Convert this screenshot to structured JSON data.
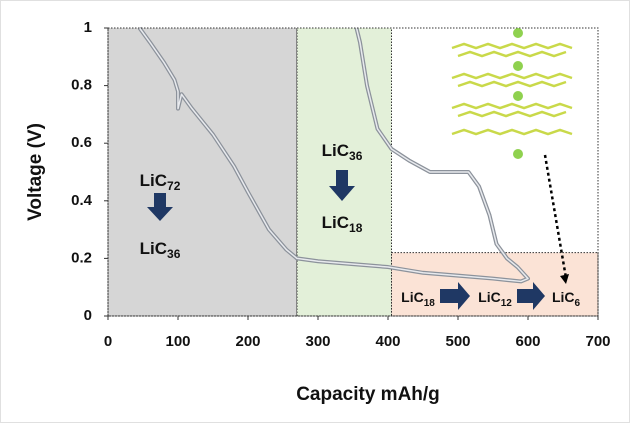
{
  "chart_data": {
    "type": "line",
    "x_label": "Capacity mAh/g",
    "y_label": "Voltage (V)",
    "xlim": [
      0,
      700
    ],
    "ylim": [
      0,
      1
    ],
    "xticks": [
      0,
      100,
      200,
      300,
      400,
      500,
      600,
      700
    ],
    "yticks": [
      0,
      0.2,
      0.4,
      0.6,
      0.8,
      1
    ],
    "regions": [
      {
        "x": [
          0,
          270
        ],
        "y": [
          0,
          1
        ],
        "color": "#d6d6d6"
      },
      {
        "x": [
          270,
          405
        ],
        "y": [
          0,
          1
        ],
        "color": "#e3f0d9"
      },
      {
        "x": [
          405,
          700
        ],
        "y": [
          0,
          0.22
        ],
        "color": "#fbe3d6"
      }
    ],
    "series": [
      {
        "color": "#8c929b",
        "x": [
          45,
          60,
          80,
          95,
          100,
          100,
          105,
          120,
          150,
          180,
          200,
          230,
          255,
          270,
          300,
          350,
          400,
          450,
          500,
          550,
          590,
          600,
          585,
          570,
          555,
          545,
          530,
          515,
          490,
          460,
          430,
          405,
          385,
          370,
          360,
          355
        ],
        "values": [
          1,
          0.95,
          0.88,
          0.82,
          0.78,
          0.72,
          0.77,
          0.72,
          0.63,
          0.52,
          0.43,
          0.3,
          0.23,
          0.2,
          0.19,
          0.18,
          0.17,
          0.15,
          0.14,
          0.13,
          0.12,
          0.13,
          0.17,
          0.2,
          0.25,
          0.35,
          0.45,
          0.5,
          0.5,
          0.5,
          0.54,
          0.58,
          0.65,
          0.8,
          0.95,
          1
        ]
      }
    ],
    "annotations": [
      {
        "text": "LiC",
        "sub": "72"
      },
      {
        "text": "LiC",
        "sub": "36"
      },
      {
        "text": "LiC",
        "sub": "36"
      },
      {
        "text": "LiC",
        "sub": "18"
      },
      {
        "text": "LiC",
        "sub": "18"
      },
      {
        "text": "LiC",
        "sub": "12"
      },
      {
        "text": "LiC",
        "sub": "6"
      }
    ]
  }
}
